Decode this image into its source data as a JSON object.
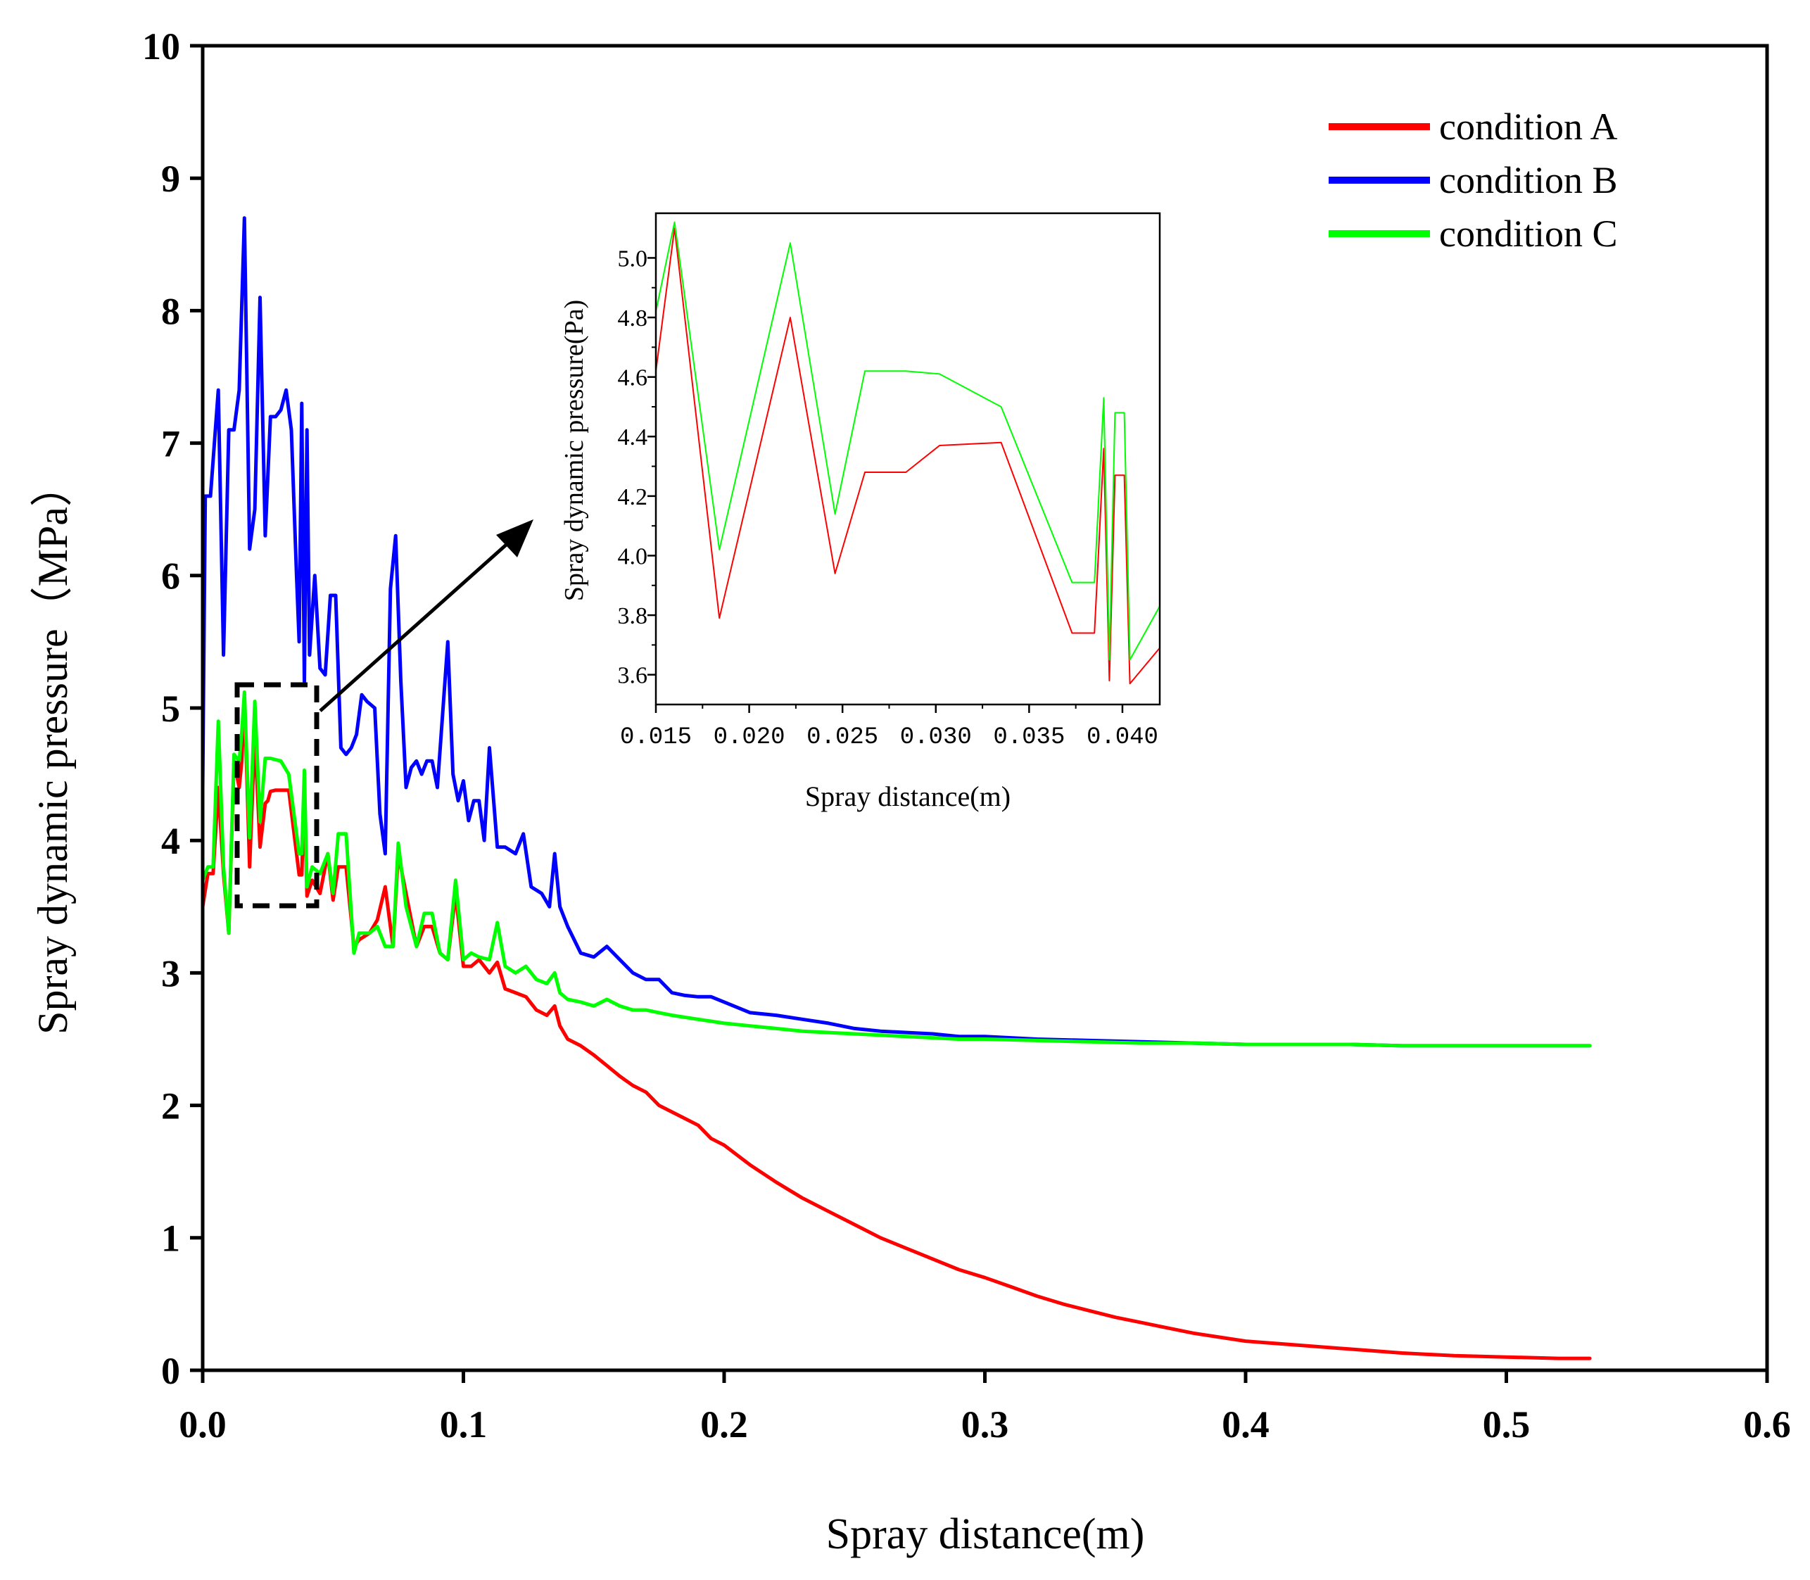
{
  "chart_data": [
    {
      "id": "main",
      "type": "line",
      "title": "",
      "xlabel": "Spray distance(m)",
      "ylabel": "Spray dynamic pressure（MPa）",
      "xlim": [
        0,
        0.6
      ],
      "ylim": [
        0,
        10
      ],
      "xticks": [
        0.0,
        0.1,
        0.2,
        0.3,
        0.4,
        0.5,
        0.6
      ],
      "xtick_labels": [
        "0.0",
        "0.1",
        "0.2",
        "0.3",
        "0.4",
        "0.5",
        "0.6"
      ],
      "yticks": [
        0,
        1,
        2,
        3,
        4,
        5,
        6,
        7,
        8,
        9,
        10
      ],
      "ytick_labels": [
        "0",
        "1",
        "2",
        "3",
        "4",
        "5",
        "6",
        "7",
        "8",
        "9",
        "10"
      ],
      "legend_position": "top-right",
      "series": [
        {
          "name": "condition A",
          "color": "#ff0000",
          "x": [
            0.0,
            0.002,
            0.004,
            0.006,
            0.008,
            0.01,
            0.012,
            0.014,
            0.015,
            0.016,
            0.018,
            0.02,
            0.022,
            0.024,
            0.025,
            0.026,
            0.028,
            0.03,
            0.033,
            0.037,
            0.038,
            0.039,
            0.04,
            0.042,
            0.045,
            0.048,
            0.05,
            0.052,
            0.055,
            0.058,
            0.06,
            0.064,
            0.067,
            0.07,
            0.073,
            0.075,
            0.078,
            0.082,
            0.085,
            0.088,
            0.091,
            0.094,
            0.097,
            0.1,
            0.103,
            0.106,
            0.11,
            0.113,
            0.116,
            0.12,
            0.124,
            0.128,
            0.132,
            0.135,
            0.137,
            0.14,
            0.145,
            0.15,
            0.155,
            0.16,
            0.165,
            0.17,
            0.175,
            0.18,
            0.185,
            0.19,
            0.195,
            0.2,
            0.21,
            0.22,
            0.23,
            0.24,
            0.25,
            0.26,
            0.27,
            0.28,
            0.29,
            0.3,
            0.31,
            0.32,
            0.33,
            0.34,
            0.35,
            0.36,
            0.37,
            0.38,
            0.39,
            0.4,
            0.42,
            0.44,
            0.46,
            0.48,
            0.5,
            0.52,
            0.532
          ],
          "y": [
            3.5,
            3.75,
            3.75,
            4.4,
            3.75,
            3.3,
            4.6,
            4.4,
            4.6,
            5.1,
            3.8,
            4.8,
            3.95,
            4.28,
            4.3,
            4.37,
            4.38,
            4.38,
            4.38,
            3.74,
            3.74,
            4.36,
            3.58,
            3.7,
            3.6,
            3.9,
            3.55,
            3.8,
            3.8,
            3.2,
            3.25,
            3.3,
            3.4,
            3.65,
            3.2,
            3.9,
            3.6,
            3.2,
            3.35,
            3.35,
            3.15,
            3.1,
            3.6,
            3.05,
            3.05,
            3.1,
            3.0,
            3.08,
            2.88,
            2.85,
            2.82,
            2.72,
            2.68,
            2.75,
            2.6,
            2.5,
            2.45,
            2.38,
            2.3,
            2.22,
            2.15,
            2.1,
            2.0,
            1.95,
            1.9,
            1.85,
            1.75,
            1.7,
            1.55,
            1.42,
            1.3,
            1.2,
            1.1,
            1.0,
            0.92,
            0.84,
            0.76,
            0.7,
            0.63,
            0.56,
            0.5,
            0.45,
            0.4,
            0.36,
            0.32,
            0.28,
            0.25,
            0.22,
            0.19,
            0.16,
            0.13,
            0.11,
            0.1,
            0.09,
            0.09
          ]
        },
        {
          "name": "condition B",
          "color": "#0000ff",
          "x": [
            0.0,
            0.001,
            0.003,
            0.006,
            0.008,
            0.01,
            0.012,
            0.014,
            0.016,
            0.018,
            0.02,
            0.022,
            0.024,
            0.026,
            0.028,
            0.03,
            0.032,
            0.034,
            0.036,
            0.037,
            0.038,
            0.039,
            0.04,
            0.041,
            0.043,
            0.045,
            0.047,
            0.049,
            0.051,
            0.053,
            0.055,
            0.057,
            0.059,
            0.061,
            0.063,
            0.066,
            0.068,
            0.07,
            0.072,
            0.074,
            0.076,
            0.078,
            0.08,
            0.082,
            0.084,
            0.086,
            0.088,
            0.09,
            0.092,
            0.094,
            0.096,
            0.098,
            0.1,
            0.102,
            0.104,
            0.106,
            0.108,
            0.11,
            0.113,
            0.116,
            0.12,
            0.123,
            0.126,
            0.13,
            0.133,
            0.135,
            0.137,
            0.14,
            0.145,
            0.15,
            0.155,
            0.16,
            0.165,
            0.17,
            0.175,
            0.18,
            0.185,
            0.19,
            0.195,
            0.2,
            0.21,
            0.22,
            0.23,
            0.24,
            0.25,
            0.26,
            0.27,
            0.28,
            0.29,
            0.3,
            0.32,
            0.34,
            0.36,
            0.38,
            0.4,
            0.42,
            0.44,
            0.46,
            0.48,
            0.5,
            0.52,
            0.532
          ],
          "y": [
            4.4,
            6.6,
            6.6,
            7.4,
            5.4,
            7.1,
            7.1,
            7.4,
            8.7,
            6.2,
            6.5,
            8.1,
            6.3,
            7.2,
            7.2,
            7.25,
            7.4,
            7.1,
            6.0,
            5.5,
            7.3,
            5.2,
            7.1,
            5.4,
            6.0,
            5.3,
            5.25,
            5.85,
            5.85,
            4.7,
            4.65,
            4.7,
            4.8,
            5.1,
            5.05,
            5.0,
            4.2,
            3.9,
            5.9,
            6.3,
            5.2,
            4.4,
            4.55,
            4.6,
            4.5,
            4.6,
            4.6,
            4.4,
            4.95,
            5.5,
            4.5,
            4.3,
            4.45,
            4.15,
            4.3,
            4.3,
            4.0,
            4.7,
            3.95,
            3.95,
            3.9,
            4.05,
            3.65,
            3.6,
            3.5,
            3.9,
            3.5,
            3.35,
            3.15,
            3.12,
            3.2,
            3.1,
            3.0,
            2.95,
            2.95,
            2.85,
            2.83,
            2.82,
            2.82,
            2.78,
            2.7,
            2.68,
            2.65,
            2.62,
            2.58,
            2.56,
            2.55,
            2.54,
            2.52,
            2.52,
            2.5,
            2.49,
            2.48,
            2.47,
            2.46,
            2.46,
            2.46,
            2.45,
            2.45,
            2.45,
            2.45,
            2.45
          ]
        },
        {
          "name": "condition C",
          "color": "#00ff00",
          "x": [
            0.0,
            0.002,
            0.004,
            0.006,
            0.008,
            0.01,
            0.012,
            0.014,
            0.015,
            0.016,
            0.018,
            0.02,
            0.022,
            0.024,
            0.025,
            0.026,
            0.028,
            0.03,
            0.033,
            0.037,
            0.038,
            0.039,
            0.04,
            0.042,
            0.045,
            0.048,
            0.05,
            0.052,
            0.055,
            0.058,
            0.06,
            0.064,
            0.067,
            0.07,
            0.073,
            0.075,
            0.078,
            0.082,
            0.085,
            0.088,
            0.091,
            0.094,
            0.097,
            0.1,
            0.103,
            0.106,
            0.11,
            0.113,
            0.116,
            0.12,
            0.124,
            0.128,
            0.132,
            0.135,
            0.137,
            0.14,
            0.145,
            0.15,
            0.155,
            0.16,
            0.165,
            0.17,
            0.175,
            0.18,
            0.19,
            0.2,
            0.21,
            0.22,
            0.23,
            0.24,
            0.25,
            0.26,
            0.27,
            0.28,
            0.29,
            0.3,
            0.32,
            0.34,
            0.36,
            0.38,
            0.4,
            0.42,
            0.44,
            0.46,
            0.48,
            0.5,
            0.52,
            0.532
          ],
          "y": [
            3.7,
            3.8,
            3.8,
            4.9,
            3.8,
            3.3,
            4.65,
            4.6,
            4.82,
            5.12,
            4.02,
            5.05,
            4.14,
            4.62,
            4.62,
            4.62,
            4.61,
            4.6,
            4.5,
            3.9,
            3.9,
            4.53,
            3.65,
            3.8,
            3.75,
            3.9,
            3.6,
            4.05,
            4.05,
            3.15,
            3.3,
            3.3,
            3.35,
            3.2,
            3.2,
            3.98,
            3.5,
            3.2,
            3.45,
            3.45,
            3.15,
            3.1,
            3.7,
            3.1,
            3.15,
            3.12,
            3.1,
            3.38,
            3.05,
            3.0,
            3.05,
            2.95,
            2.92,
            3.0,
            2.85,
            2.8,
            2.78,
            2.75,
            2.8,
            2.75,
            2.72,
            2.72,
            2.7,
            2.68,
            2.65,
            2.62,
            2.6,
            2.58,
            2.56,
            2.55,
            2.54,
            2.53,
            2.52,
            2.51,
            2.5,
            2.5,
            2.49,
            2.48,
            2.47,
            2.47,
            2.46,
            2.46,
            2.46,
            2.45,
            2.45,
            2.45,
            2.45,
            2.45
          ]
        }
      ]
    },
    {
      "id": "inset",
      "type": "line",
      "title": "",
      "xlabel": "Spray distance(m)",
      "ylabel": "Spray dynamic pressure(Pa)",
      "xlim": [
        0.015,
        0.042
      ],
      "ylim": [
        3.5,
        5.15
      ],
      "xticks": [
        0.015,
        0.02,
        0.025,
        0.03,
        0.035,
        0.04
      ],
      "xtick_labels": [
        "0.015",
        "0.020",
        "0.025",
        "0.030",
        "0.035",
        "0.040"
      ],
      "yticks": [
        3.6,
        3.8,
        4.0,
        4.2,
        4.4,
        4.6,
        4.8,
        5.0
      ],
      "ytick_labels": [
        "3.6",
        "3.8",
        "4.0",
        "4.2",
        "4.4",
        "4.6",
        "4.8",
        "5.0"
      ],
      "series": [
        {
          "name": "condition A",
          "color": "#ff0000",
          "x": [
            0.015,
            0.016,
            0.0184,
            0.0222,
            0.0246,
            0.0262,
            0.0284,
            0.0302,
            0.0335,
            0.0373,
            0.0385,
            0.039,
            0.0393,
            0.0396,
            0.0401,
            0.0404,
            0.042
          ],
          "y": [
            4.62,
            5.1,
            3.79,
            4.8,
            3.94,
            4.28,
            4.28,
            4.37,
            4.38,
            3.74,
            3.74,
            4.36,
            3.58,
            4.27,
            4.27,
            3.57,
            3.69
          ]
        },
        {
          "name": "condition C",
          "color": "#00ff00",
          "x": [
            0.015,
            0.016,
            0.0184,
            0.0222,
            0.0246,
            0.0262,
            0.0284,
            0.0302,
            0.0335,
            0.0373,
            0.0385,
            0.039,
            0.0393,
            0.0396,
            0.0401,
            0.0404,
            0.042
          ],
          "y": [
            4.82,
            5.12,
            4.02,
            5.05,
            4.14,
            4.62,
            4.62,
            4.61,
            4.5,
            3.91,
            3.91,
            4.53,
            3.65,
            4.48,
            4.48,
            3.65,
            3.83
          ]
        }
      ]
    }
  ]
}
